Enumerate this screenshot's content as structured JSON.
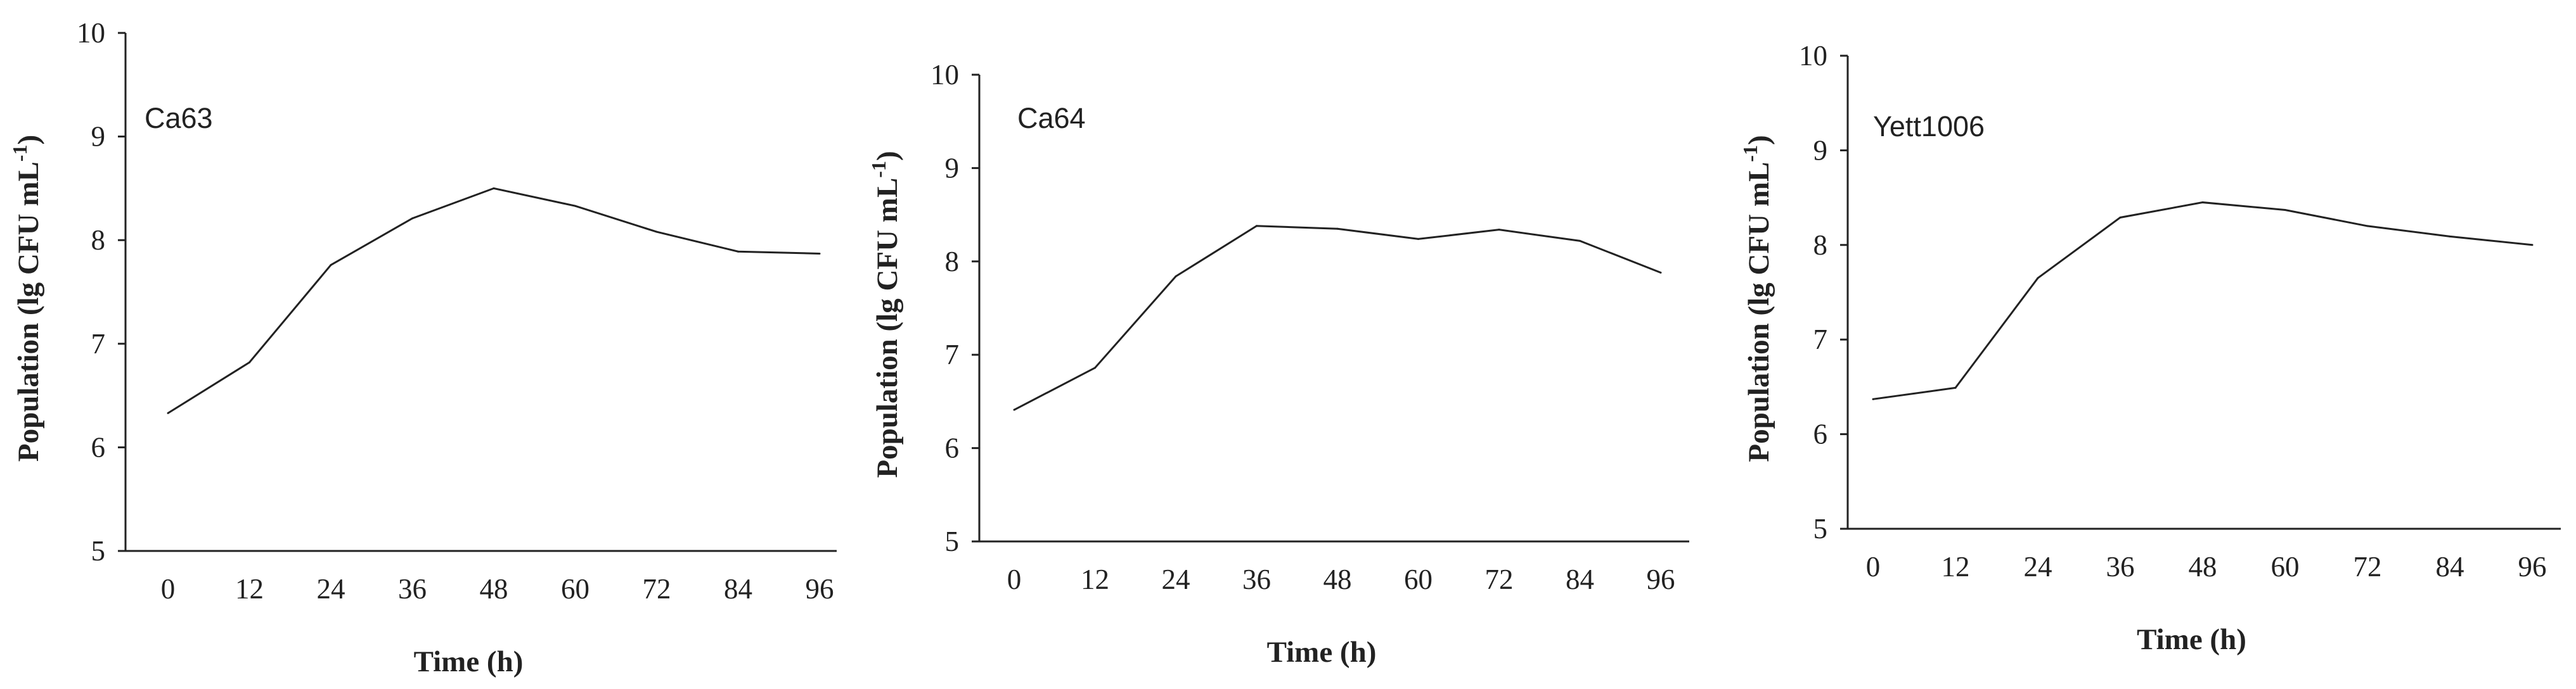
{
  "chart_data": [
    {
      "type": "line",
      "annotation": "Ca63",
      "xlabel": "Time (h)",
      "ylabel": "Population (lg CFU mL",
      "ylabel_sup": "-1",
      "ylabel_end": ")",
      "categories": [
        "0",
        "12",
        "24",
        "36",
        "48",
        "60",
        "72",
        "84",
        "96"
      ],
      "yticks": [
        "5",
        "6",
        "7",
        "8",
        "9",
        "10"
      ],
      "ylim": [
        5,
        10
      ],
      "grid": false,
      "series": [
        {
          "values": [
            6.33,
            6.82,
            7.76,
            8.21,
            8.5,
            8.33,
            8.08,
            7.89,
            7.87
          ]
        }
      ]
    },
    {
      "type": "line",
      "annotation": "Ca64",
      "xlabel": "Time (h)",
      "ylabel": "Population (lg CFU mL",
      "ylabel_sup": "-1",
      "ylabel_end": ")",
      "categories": [
        "0",
        "12",
        "24",
        "36",
        "48",
        "60",
        "72",
        "84",
        "96"
      ],
      "yticks": [
        "5",
        "6",
        "7",
        "8",
        "9",
        "10"
      ],
      "ylim": [
        5,
        10
      ],
      "grid": false,
      "series": [
        {
          "values": [
            6.41,
            6.86,
            7.84,
            8.38,
            8.35,
            8.24,
            8.34,
            8.22,
            7.88
          ]
        }
      ]
    },
    {
      "type": "line",
      "annotation": "Yett1006",
      "xlabel": "Time (h)",
      "ylabel": "Population (lg CFU mL",
      "ylabel_sup": "-1",
      "ylabel_end": ")",
      "categories": [
        "0",
        "12",
        "24",
        "36",
        "48",
        "60",
        "72",
        "84",
        "96"
      ],
      "yticks": [
        "5",
        "6",
        "7",
        "8",
        "9",
        "10"
      ],
      "ylim": [
        5,
        10
      ],
      "grid": false,
      "series": [
        {
          "values": [
            6.37,
            6.49,
            7.65,
            8.29,
            8.45,
            8.37,
            8.2,
            8.09,
            8.0
          ]
        }
      ]
    }
  ]
}
